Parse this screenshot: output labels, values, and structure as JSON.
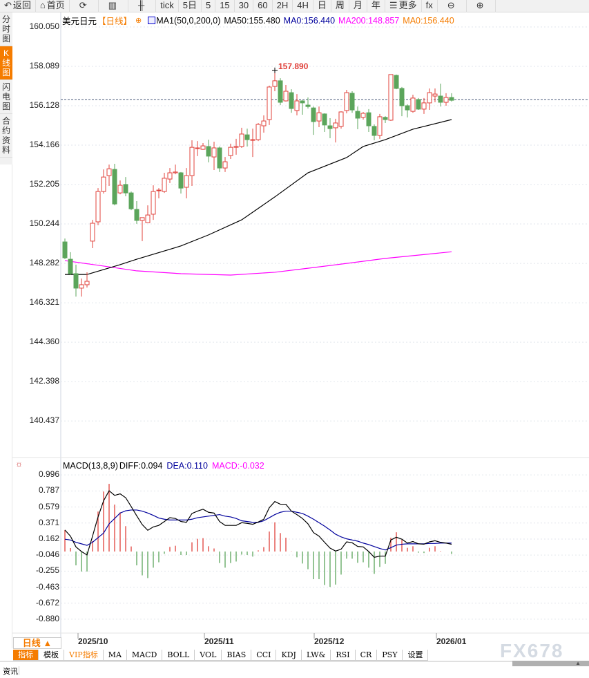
{
  "toolbar": {
    "items": [
      {
        "icon": "back-icon",
        "label": "返回"
      },
      {
        "icon": "home-icon",
        "label": "首页"
      },
      {
        "icon": "refresh-icon",
        "label": ""
      },
      {
        "icon": "bar-chart-icon",
        "label": ""
      },
      {
        "icon": "candlestick-icon",
        "label": ""
      },
      {
        "label": "tick"
      },
      {
        "label": "5日"
      },
      {
        "label": "5"
      },
      {
        "label": "15"
      },
      {
        "label": "30"
      },
      {
        "label": "60"
      },
      {
        "label": "2H"
      },
      {
        "label": "4H"
      },
      {
        "label": "日"
      },
      {
        "label": "周"
      },
      {
        "label": "月"
      },
      {
        "label": "年"
      },
      {
        "icon": "menu-icon",
        "label": "更多"
      },
      {
        "label": "fx"
      },
      {
        "icon": "zoom-out-icon",
        "label": ""
      },
      {
        "icon": "zoom-in-icon",
        "label": ""
      }
    ]
  },
  "left_tabs": [
    {
      "label": "分时图"
    },
    {
      "label": "K线图",
      "active": true
    },
    {
      "label": "闪电图"
    },
    {
      "label": "合约资料"
    }
  ],
  "legend": {
    "symbol": "美元日元",
    "period": "【日线】",
    "indicator": "MA1(50,0,200,0)",
    "ma50": "MA50:155.480",
    "ma0a": "MA0:156.440",
    "ma200": "MA200:148.857",
    "ma0b": "MA0:156.440"
  },
  "macd_legend": {
    "name": "MACD(13,8,9)",
    "diff": "DIFF:0.094",
    "dea": "DEA:0.110",
    "macd": "MACD:-0.032"
  },
  "max_label": "157.890",
  "colors": {
    "up": "#e0403a",
    "down": "#5ba55b",
    "ma50": "#000000",
    "ma200": "#ff00ff",
    "dea": "#00009c",
    "diff": "#000000",
    "accent": "#f57c00",
    "last_price_line": "#3a8ee6"
  },
  "price_axis": [
    "160.050",
    "158.089",
    "156.128",
    "154.166",
    "152.205",
    "150.244",
    "148.282",
    "146.321",
    "144.360",
    "142.398",
    "140.437"
  ],
  "macd_axis": [
    "0.996",
    "0.787",
    "0.579",
    "0.371",
    "0.162",
    "-0.046",
    "-0.255",
    "-0.463",
    "-0.672",
    "-0.880"
  ],
  "date_labels": [
    "2025/10",
    "2025/11",
    "2025/12",
    "2026/01"
  ],
  "period_selector": "日线 ▲",
  "bottom_tabs": [
    {
      "label": "指标",
      "active": true
    },
    {
      "label": "模板"
    },
    {
      "label": "VIP指标",
      "vip": true
    },
    {
      "label": "MA"
    },
    {
      "label": "MACD"
    },
    {
      "label": "BOLL"
    },
    {
      "label": "VOL"
    },
    {
      "label": "BIAS"
    },
    {
      "label": "CCI"
    },
    {
      "label": "KDJ"
    },
    {
      "label": "LW&"
    },
    {
      "label": "RSI"
    },
    {
      "label": "CR"
    },
    {
      "label": "PSY"
    },
    {
      "label": "设置"
    }
  ],
  "news_tab": "资讯",
  "watermark": "FX678",
  "chart_data": {
    "type": "candlestick",
    "price_range": [
      140.437,
      160.05
    ],
    "last_price": 156.44,
    "max_high": 157.89,
    "ohlc": [
      [
        149.35,
        149.52,
        148.49,
        148.56
      ],
      [
        148.49,
        148.84,
        147.7,
        147.77
      ],
      [
        147.77,
        148.22,
        146.63,
        147.05
      ],
      [
        147.05,
        147.53,
        146.63,
        147.22
      ],
      [
        147.22,
        147.84,
        147.08,
        147.39
      ],
      [
        149.39,
        150.45,
        149.04,
        150.28
      ],
      [
        150.35,
        152.03,
        150.18,
        151.86
      ],
      [
        151.86,
        152.96,
        151.76,
        152.58
      ],
      [
        152.65,
        153.2,
        152.14,
        152.99
      ],
      [
        152.96,
        153.24,
        151.17,
        151.24
      ],
      [
        151.79,
        152.41,
        151.72,
        152.17
      ],
      [
        152.21,
        152.58,
        151.62,
        151.79
      ],
      [
        151.79,
        151.86,
        150.93,
        151.0
      ],
      [
        150.97,
        151.38,
        150.25,
        150.42
      ],
      [
        150.42,
        150.56,
        149.39,
        150.56
      ],
      [
        150.31,
        151.17,
        150.31,
        150.69
      ],
      [
        150.73,
        152.17,
        150.45,
        151.86
      ],
      [
        151.9,
        152.03,
        151.52,
        151.93
      ],
      [
        151.86,
        152.79,
        151.79,
        152.52
      ],
      [
        152.48,
        153.03,
        152.28,
        152.79
      ],
      [
        152.79,
        153.2,
        152.72,
        152.83
      ],
      [
        152.79,
        152.83,
        151.76,
        152.03
      ],
      [
        152.07,
        153.03,
        151.52,
        152.65
      ],
      [
        152.65,
        154.41,
        152.14,
        154.06
      ],
      [
        154.03,
        154.37,
        153.62,
        154.03
      ],
      [
        153.96,
        154.27,
        153.93,
        154.13
      ],
      [
        154.1,
        154.44,
        153.31,
        153.62
      ],
      [
        153.58,
        154.34,
        152.93,
        154.03
      ],
      [
        154.03,
        154.1,
        152.83,
        153.03
      ],
      [
        153.03,
        153.58,
        152.83,
        153.34
      ],
      [
        153.65,
        154.24,
        153.48,
        154.06
      ],
      [
        154.06,
        154.48,
        153.69,
        154.1
      ],
      [
        154.1,
        155.03,
        154.03,
        154.72
      ],
      [
        154.68,
        154.99,
        154.1,
        154.44
      ],
      [
        154.44,
        154.99,
        153.58,
        154.44
      ],
      [
        154.44,
        155.27,
        154.37,
        155.2
      ],
      [
        155.13,
        155.65,
        154.79,
        155.37
      ],
      [
        155.44,
        157.13,
        155.17,
        157.06
      ],
      [
        157.09,
        157.89,
        156.85,
        157.37
      ],
      [
        157.37,
        157.5,
        156.16,
        156.3
      ],
      [
        156.37,
        157.16,
        156.34,
        156.85
      ],
      [
        156.78,
        156.95,
        155.78,
        155.99
      ],
      [
        155.89,
        156.71,
        155.65,
        156.37
      ],
      [
        156.37,
        156.4,
        155.68,
        156.27
      ],
      [
        156.16,
        156.54,
        155.99,
        156.09
      ],
      [
        156.02,
        156.09,
        154.68,
        155.34
      ],
      [
        155.37,
        156.09,
        155.06,
        155.78
      ],
      [
        155.72,
        155.75,
        154.82,
        155.17
      ],
      [
        155.13,
        155.51,
        154.51,
        154.99
      ],
      [
        155.03,
        155.48,
        154.3,
        155.27
      ],
      [
        155.1,
        155.85,
        154.99,
        155.82
      ],
      [
        155.89,
        156.92,
        155.75,
        156.78
      ],
      [
        156.75,
        156.85,
        155.78,
        155.92
      ],
      [
        155.85,
        156.09,
        154.96,
        155.51
      ],
      [
        155.55,
        155.82,
        155.44,
        155.75
      ],
      [
        155.78,
        155.96,
        154.82,
        155.13
      ],
      [
        155.1,
        155.2,
        154.41,
        154.65
      ],
      [
        154.65,
        155.72,
        154.48,
        155.58
      ],
      [
        155.55,
        155.61,
        155.27,
        155.44
      ],
      [
        155.41,
        157.68,
        155.37,
        157.68
      ],
      [
        157.64,
        157.68,
        156.95,
        156.99
      ],
      [
        156.99,
        157.06,
        155.61,
        156.13
      ],
      [
        156.13,
        156.2,
        155.55,
        155.92
      ],
      [
        155.85,
        156.68,
        155.78,
        156.51
      ],
      [
        156.44,
        156.51,
        155.92,
        155.96
      ],
      [
        155.96,
        156.51,
        155.72,
        156.27
      ],
      [
        156.27,
        156.99,
        155.92,
        156.78
      ],
      [
        156.61,
        156.99,
        156.3,
        156.71
      ],
      [
        156.61,
        157.23,
        156.09,
        156.3
      ],
      [
        156.3,
        156.75,
        156.13,
        156.54
      ],
      [
        156.54,
        156.75,
        156.34,
        156.4
      ]
    ],
    "ma50": [
      [
        0,
        147.73
      ],
      [
        4,
        147.73
      ],
      [
        10,
        148.22
      ],
      [
        13,
        148.49
      ],
      [
        21,
        149.15
      ],
      [
        26,
        149.7
      ],
      [
        32,
        150.45
      ],
      [
        38,
        151.59
      ],
      [
        44,
        152.79
      ],
      [
        51,
        153.55
      ],
      [
        54,
        154.1
      ],
      [
        58,
        154.44
      ],
      [
        63,
        154.96
      ],
      [
        70,
        155.44
      ]
    ],
    "ma200": [
      [
        0,
        148.42
      ],
      [
        7,
        148.15
      ],
      [
        13,
        147.91
      ],
      [
        21,
        147.77
      ],
      [
        30,
        147.7
      ],
      [
        38,
        147.84
      ],
      [
        44,
        148.04
      ],
      [
        51,
        148.28
      ],
      [
        58,
        148.53
      ],
      [
        70,
        148.86
      ]
    ],
    "macd": {
      "range": [
        -0.88,
        0.996
      ],
      "hist": [
        0.28,
        0.045,
        -0.18,
        -0.26,
        -0.26,
        0.135,
        0.52,
        0.78,
        0.88,
        0.61,
        0.51,
        0.33,
        0.066,
        -0.18,
        -0.31,
        -0.345,
        -0.21,
        -0.14,
        -0.03,
        0.06,
        0.075,
        -0.045,
        -0.045,
        0.12,
        0.165,
        0.174,
        0.069,
        0.04,
        -0.15,
        -0.21,
        -0.15,
        -0.13,
        -0.04,
        -0.045,
        -0.066,
        0.015,
        0.057,
        0.26,
        0.38,
        0.24,
        0.18,
        0.003,
        -0.075,
        -0.156,
        -0.23,
        -0.36,
        -0.36,
        -0.435,
        -0.46,
        -0.43,
        -0.3,
        -0.093,
        -0.093,
        -0.147,
        -0.14,
        -0.21,
        -0.29,
        -0.2,
        -0.16,
        0.18,
        0.25,
        0.15,
        0.048,
        0.069,
        -0.015,
        -0.02,
        0.048,
        0.069,
        0.006,
        0.0,
        -0.032
      ],
      "diff": [
        0.28,
        0.2,
        0.06,
        0.0,
        -0.045,
        0.2,
        0.45,
        0.66,
        0.79,
        0.73,
        0.75,
        0.7,
        0.585,
        0.465,
        0.35,
        0.276,
        0.32,
        0.34,
        0.39,
        0.44,
        0.43,
        0.39,
        0.38,
        0.495,
        0.525,
        0.55,
        0.51,
        0.5,
        0.39,
        0.34,
        0.34,
        0.34,
        0.375,
        0.366,
        0.354,
        0.384,
        0.42,
        0.57,
        0.65,
        0.615,
        0.615,
        0.525,
        0.48,
        0.43,
        0.36,
        0.246,
        0.2,
        0.12,
        0.045,
        0.006,
        0.03,
        0.126,
        0.114,
        0.066,
        0.06,
        0.0,
        -0.075,
        -0.06,
        -0.06,
        0.15,
        0.186,
        0.16,
        0.11,
        0.13,
        0.1,
        0.095,
        0.126,
        0.14,
        0.12,
        0.11,
        0.094
      ],
      "dea": [
        0.16,
        0.15,
        0.12,
        0.1,
        0.08,
        0.12,
        0.18,
        0.24,
        0.36,
        0.43,
        0.5,
        0.53,
        0.54,
        0.54,
        0.525,
        0.5,
        0.47,
        0.435,
        0.42,
        0.41,
        0.41,
        0.41,
        0.41,
        0.42,
        0.44,
        0.45,
        0.46,
        0.47,
        0.48,
        0.46,
        0.45,
        0.43,
        0.4,
        0.39,
        0.38,
        0.38,
        0.4,
        0.44,
        0.48,
        0.51,
        0.525,
        0.525,
        0.51,
        0.495,
        0.46,
        0.42,
        0.375,
        0.33,
        0.28,
        0.225,
        0.19,
        0.165,
        0.15,
        0.135,
        0.11,
        0.09,
        0.065,
        0.04,
        0.02,
        0.05,
        0.084,
        0.095,
        0.1,
        0.1,
        0.1,
        0.1,
        0.105,
        0.105,
        0.11,
        0.11,
        0.11
      ]
    }
  }
}
